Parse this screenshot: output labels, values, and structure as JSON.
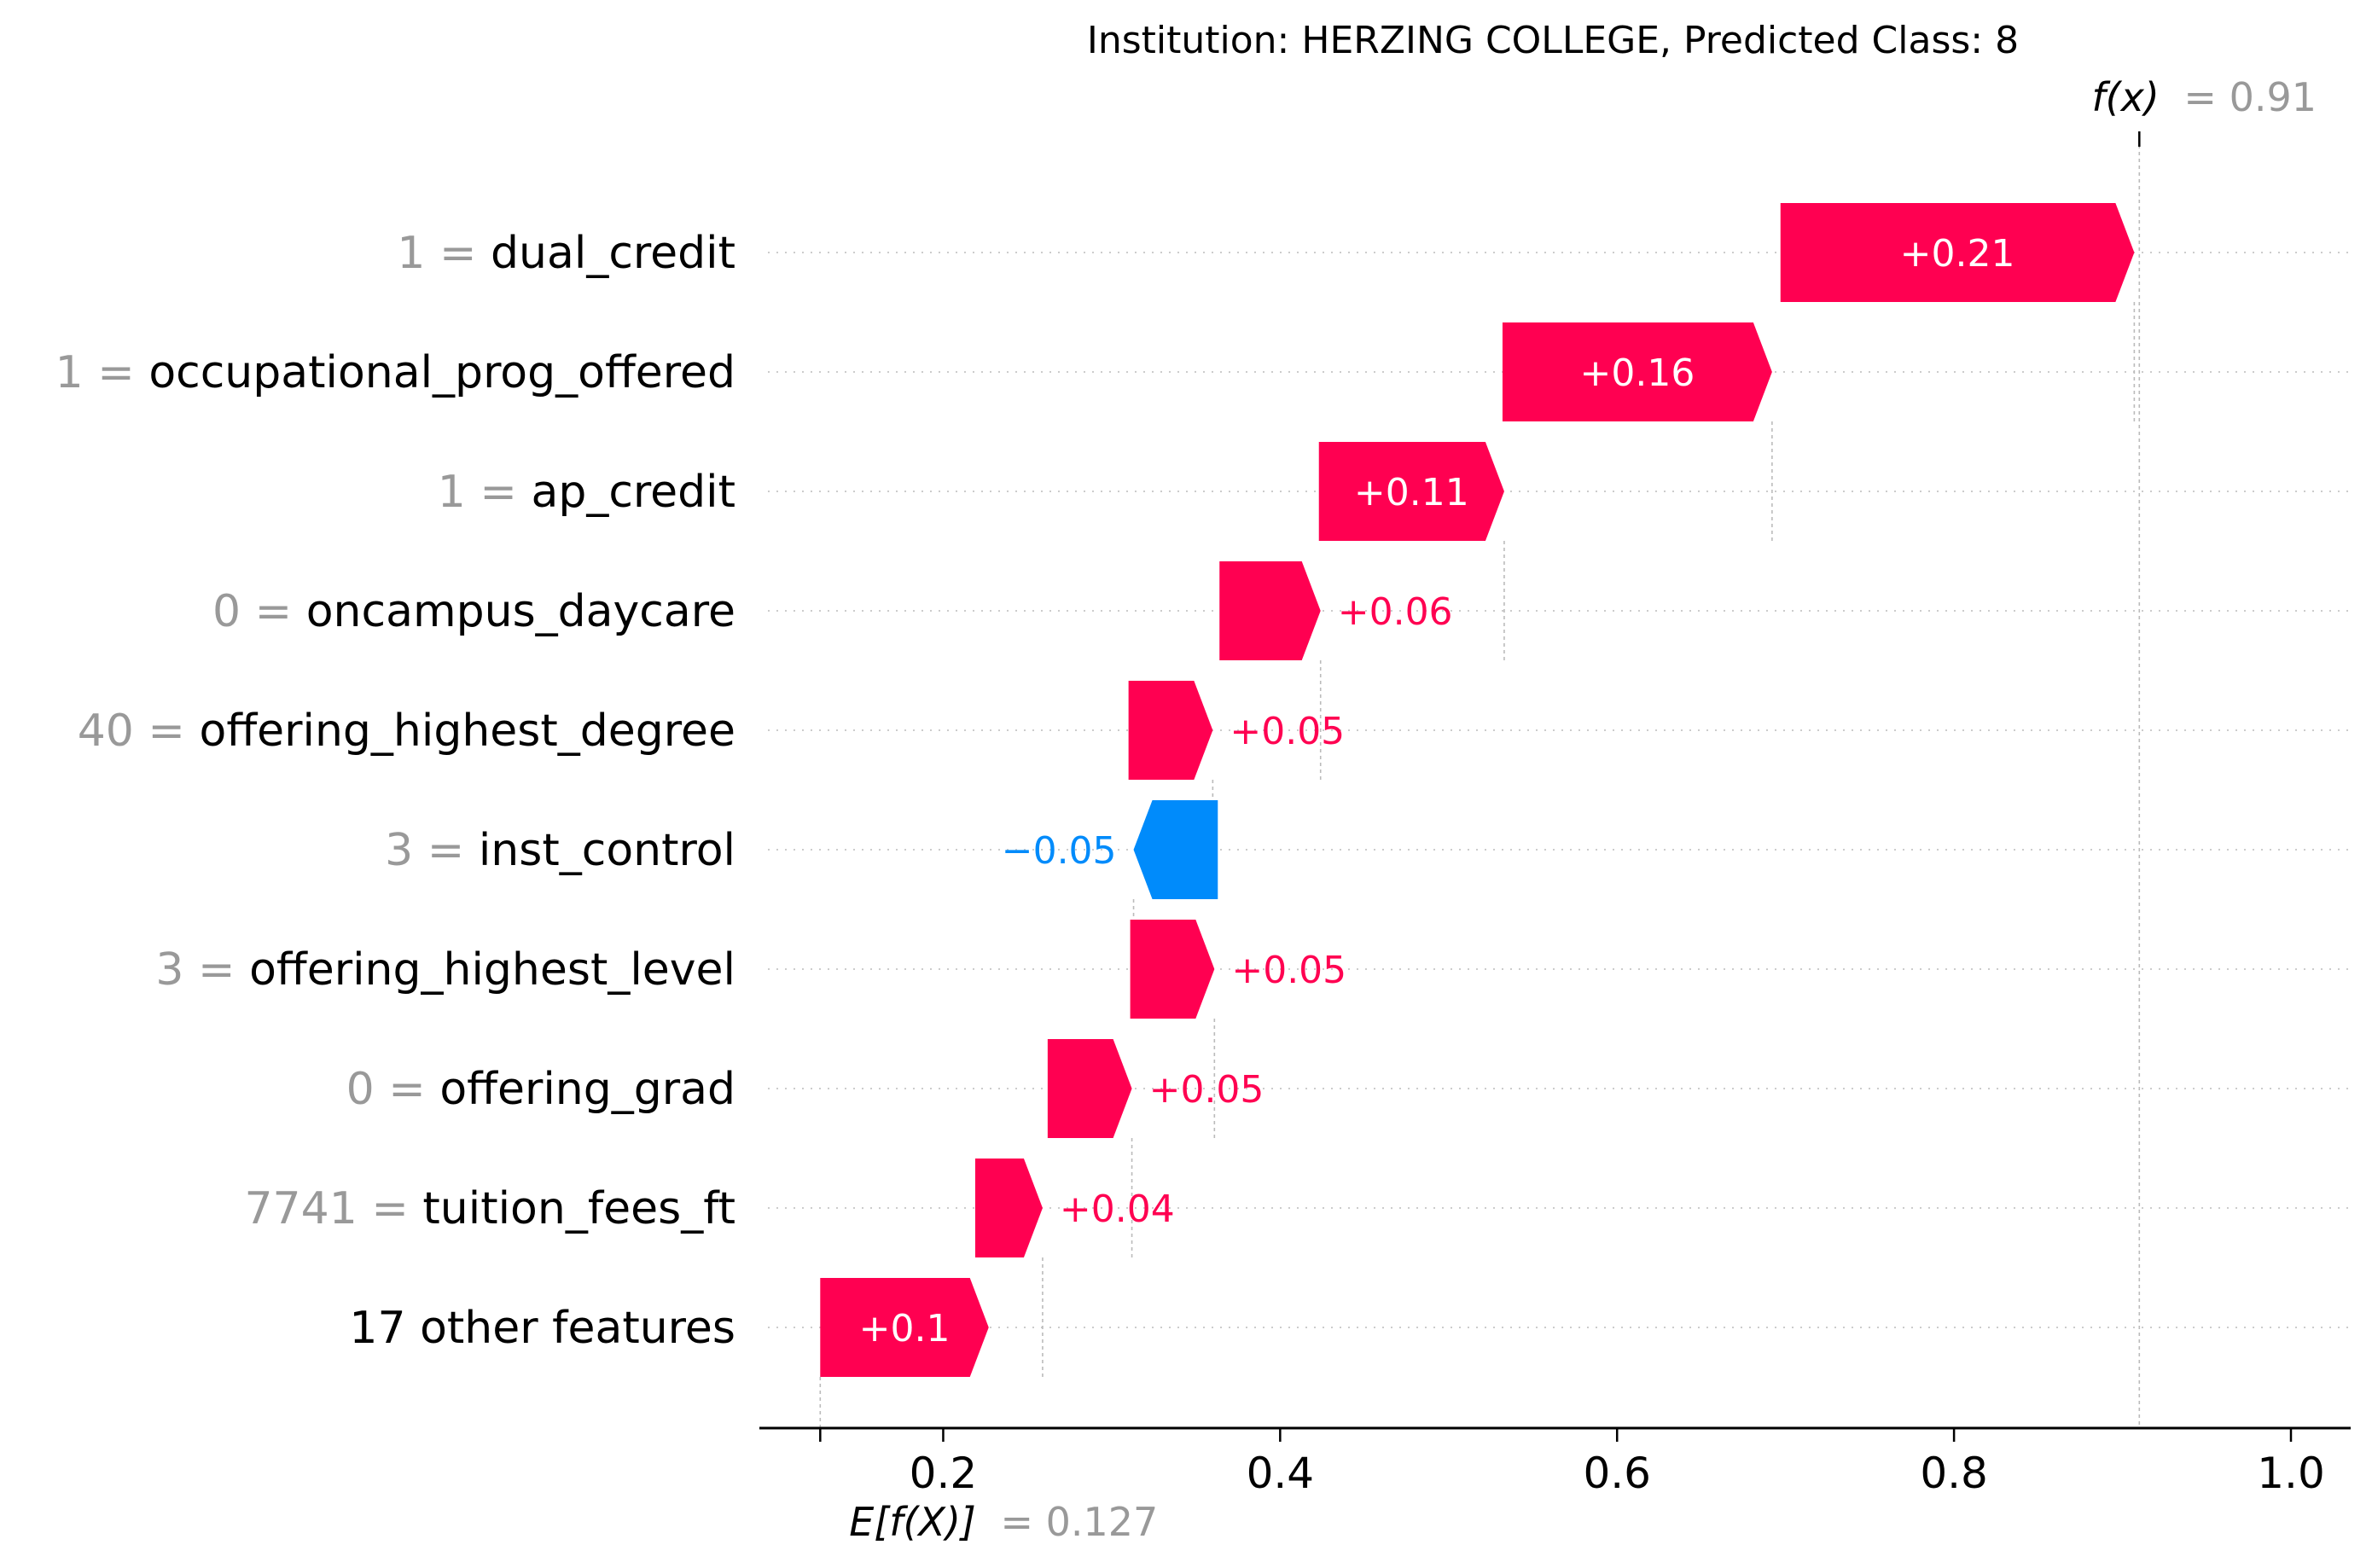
{
  "chart_data": {
    "type": "waterfall",
    "title": "Institution: HERZING COLLEGE, Predicted Class: 8",
    "base_value": 0.127,
    "base_label_fn": "E[f(X)]",
    "base_label_value": "= 0.127",
    "output_value": 0.91,
    "output_label_fn": "f(x)",
    "output_label_value": "= 0.91",
    "xlim": [
      0.1,
      1.03
    ],
    "xticks": [
      0.2,
      0.4,
      0.6,
      0.8,
      1.0
    ],
    "xtick_labels": [
      "0.2",
      "0.4",
      "0.6",
      "0.8",
      "1.0"
    ],
    "features": [
      {
        "value": "1",
        "name": "dual_credit",
        "start": 0.697,
        "shap": 0.21,
        "label": "+0.21"
      },
      {
        "value": "1",
        "name": "occupational_prog_offered",
        "start": 0.532,
        "shap": 0.16,
        "label": "+0.16"
      },
      {
        "value": "1",
        "name": "ap_credit",
        "start": 0.423,
        "shap": 0.11,
        "label": "+0.11"
      },
      {
        "value": "0",
        "name": "oncampus_daycare",
        "start": 0.364,
        "shap": 0.06,
        "label": "+0.06"
      },
      {
        "value": "40",
        "name": "offering_highest_degree",
        "start": 0.31,
        "shap": 0.05,
        "label": "+0.05"
      },
      {
        "value": "3",
        "name": "inst_control",
        "start": 0.363,
        "shap": -0.05,
        "label": "−0.05"
      },
      {
        "value": "3",
        "name": "offering_highest_level",
        "start": 0.311,
        "shap": 0.05,
        "label": "+0.05"
      },
      {
        "value": "0",
        "name": "offering_grad",
        "start": 0.262,
        "shap": 0.05,
        "label": "+0.05"
      },
      {
        "value": "7741",
        "name": "tuition_fees_ft",
        "start": 0.219,
        "shap": 0.04,
        "label": "+0.04"
      },
      {
        "value": "",
        "name": "17 other features",
        "start": 0.127,
        "shap": 0.1,
        "label": "+0.1"
      }
    ],
    "colors": {
      "positive": "#ff0051",
      "negative": "#008bfb",
      "value_gray": "#999999",
      "text": "#000000"
    }
  }
}
